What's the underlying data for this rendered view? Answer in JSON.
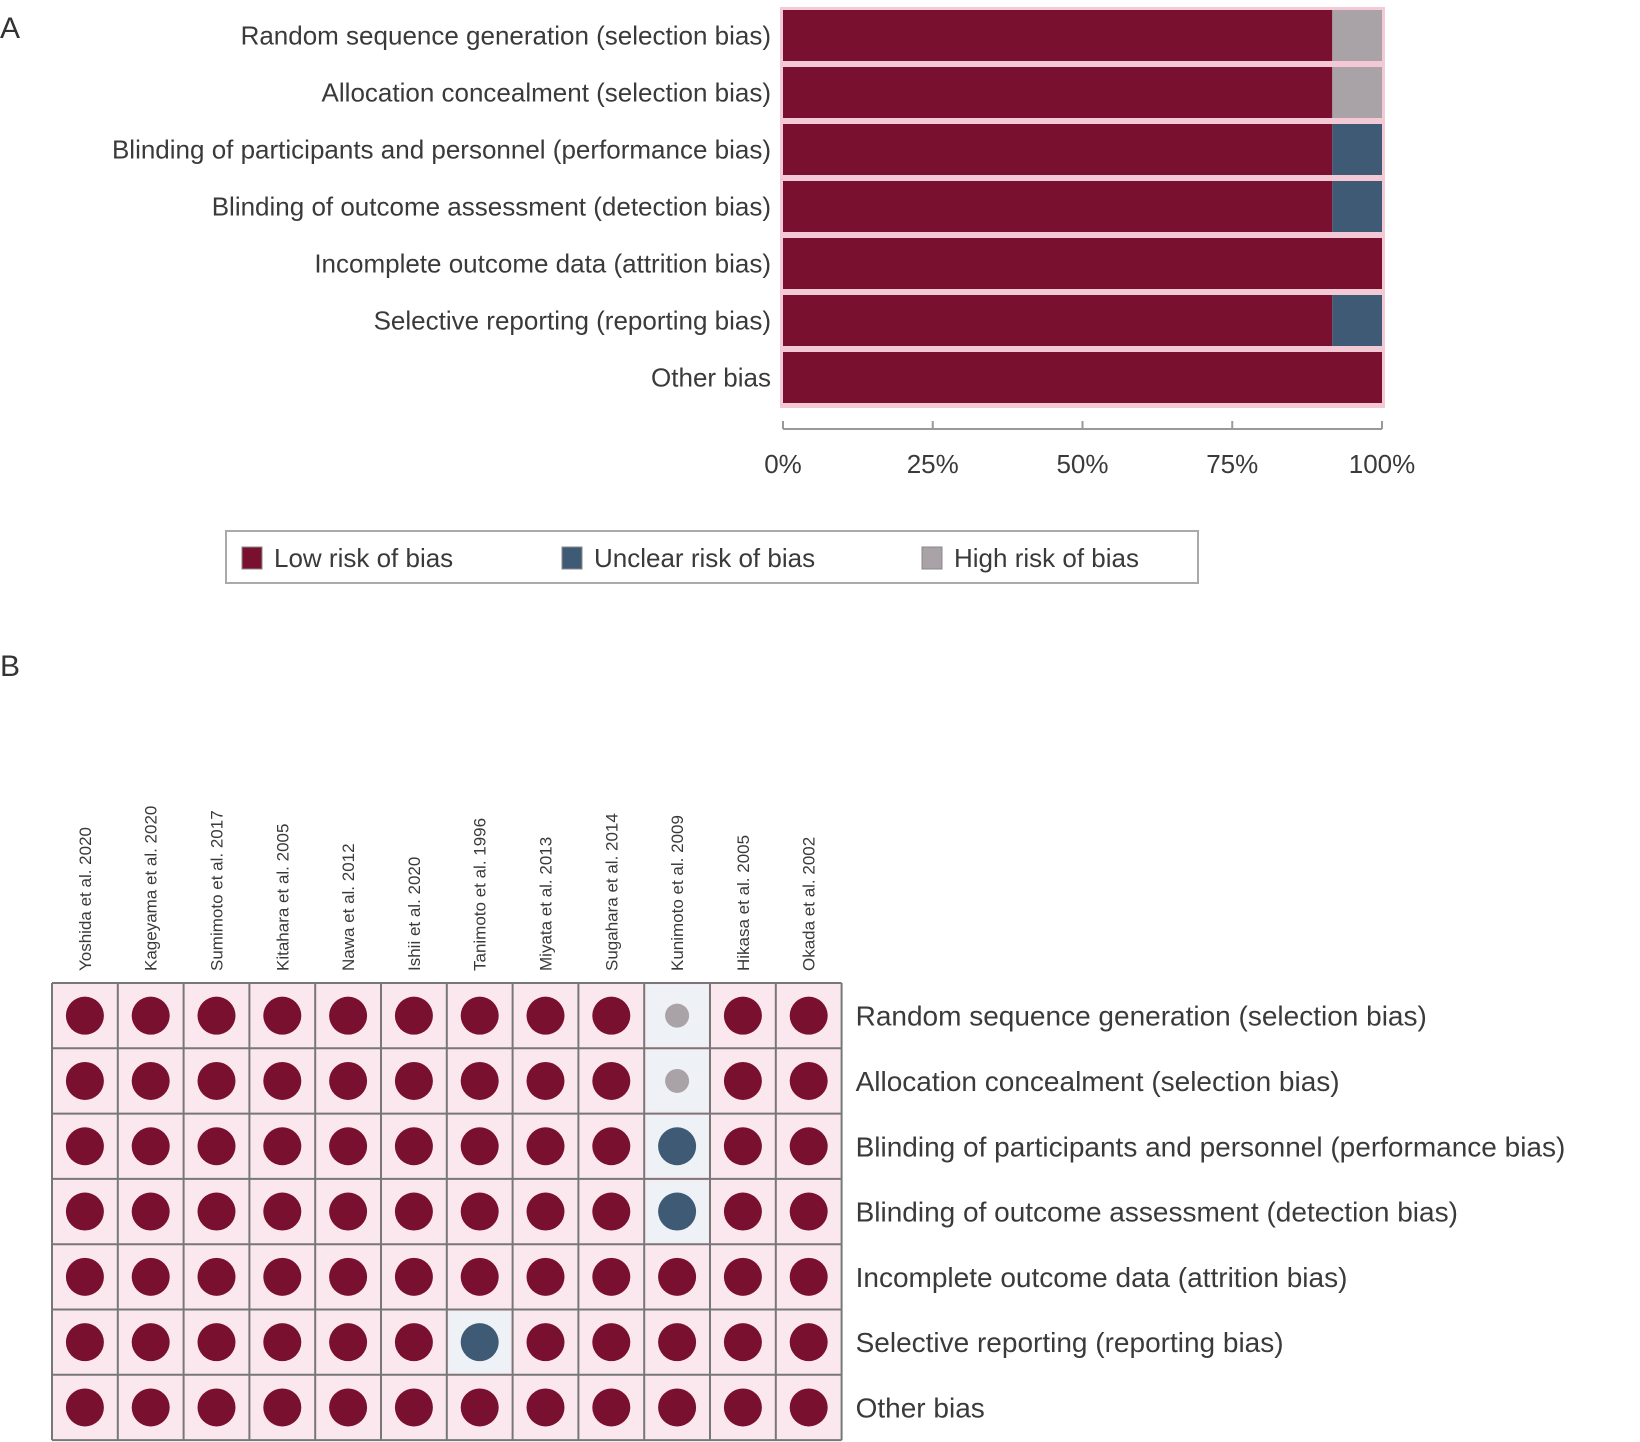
{
  "colors": {
    "low": "#7a1030",
    "unclear": "#3f5a75",
    "high": "#a9a3a7",
    "bar_gap": "#f3c9d6",
    "cell_bg": "#fbe8ee",
    "grid": "#777777"
  },
  "panels": {
    "a": "A",
    "b": "B"
  },
  "chart_data": [
    {
      "type": "bar",
      "orientation": "horizontal",
      "stacked": true,
      "categories": [
        "Random sequence generation (selection bias)",
        "Allocation concealment (selection bias)",
        "Blinding of participants and personnel (performance bias)",
        "Blinding of outcome assessment (detection bias)",
        "Incomplete outcome data (attrition bias)",
        "Selective reporting (reporting bias)",
        "Other bias"
      ],
      "series": [
        {
          "name": "Low risk of bias",
          "color_key": "low",
          "values": [
            91.7,
            91.7,
            91.7,
            91.7,
            100,
            91.7,
            100
          ]
        },
        {
          "name": "Unclear risk of bias",
          "color_key": "unclear",
          "values": [
            0,
            0,
            8.3,
            8.3,
            0,
            8.3,
            0
          ]
        },
        {
          "name": "High risk of bias",
          "color_key": "high",
          "values": [
            8.3,
            8.3,
            0,
            0,
            0,
            0,
            0
          ]
        }
      ],
      "xlim": [
        0,
        100
      ],
      "xticks": [
        0,
        25,
        50,
        75,
        100
      ],
      "xtick_labels": [
        "0%",
        "25%",
        "50%",
        "75%",
        "100%"
      ],
      "legend": {
        "placement": "bottom",
        "items": [
          {
            "label": "Low risk of bias",
            "color_key": "low"
          },
          {
            "label": "Unclear risk of bias",
            "color_key": "unclear"
          },
          {
            "label": "High risk of bias",
            "color_key": "high"
          }
        ]
      }
    },
    {
      "type": "heatmap",
      "studies": [
        "Yoshida et al. 2020",
        "Kageyama et al. 2020",
        "Sumimoto et al. 2017",
        "Kitahara et al. 2005",
        "Nawa et al. 2012",
        "Ishii et al. 2020",
        "Tanimoto et al. 1996",
        "Miyata et al. 2013",
        "Sugahara et al. 2014",
        "Kunimoto et al. 2009",
        "Hikasa et al. 2005",
        "Okada et al. 2002"
      ],
      "domains": [
        "Random sequence generation (selection bias)",
        "Allocation concealment (selection bias)",
        "Blinding of participants and personnel (performance bias)",
        "Blinding of outcome assessment (detection bias)",
        "Incomplete outcome data (attrition bias)",
        "Selective reporting (reporting bias)",
        "Other bias"
      ],
      "judgements": [
        [
          "low",
          "low",
          "low",
          "low",
          "low",
          "low",
          "low",
          "low",
          "low",
          "high",
          "low",
          "low"
        ],
        [
          "low",
          "low",
          "low",
          "low",
          "low",
          "low",
          "low",
          "low",
          "low",
          "high",
          "low",
          "low"
        ],
        [
          "low",
          "low",
          "low",
          "low",
          "low",
          "low",
          "low",
          "low",
          "low",
          "unclear",
          "low",
          "low"
        ],
        [
          "low",
          "low",
          "low",
          "low",
          "low",
          "low",
          "low",
          "low",
          "low",
          "unclear",
          "low",
          "low"
        ],
        [
          "low",
          "low",
          "low",
          "low",
          "low",
          "low",
          "low",
          "low",
          "low",
          "low",
          "low",
          "low"
        ],
        [
          "low",
          "low",
          "low",
          "low",
          "low",
          "low",
          "unclear",
          "low",
          "low",
          "low",
          "low",
          "low"
        ],
        [
          "low",
          "low",
          "low",
          "low",
          "low",
          "low",
          "low",
          "low",
          "low",
          "low",
          "low",
          "low"
        ]
      ]
    }
  ]
}
